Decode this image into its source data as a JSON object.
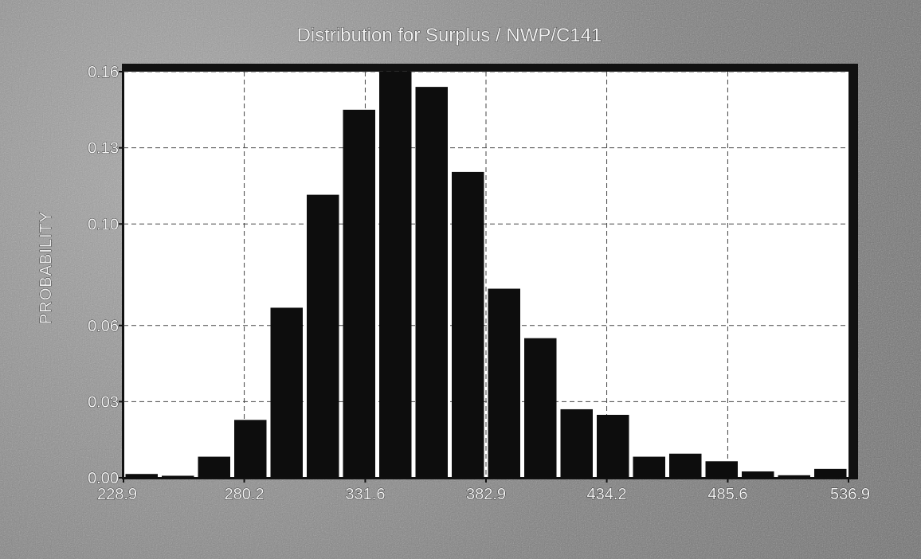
{
  "chart_data": {
    "type": "bar",
    "title": "Distribution for Surplus / NWP/C141",
    "xlabel": "",
    "ylabel": "PROBABILITY",
    "x_tick_labels": [
      "228.9",
      "280.2",
      "331.6",
      "382.9",
      "434.2",
      "485.6",
      "536.9"
    ],
    "y_tick_labels": [
      "0.00",
      "0.03",
      "0.06",
      "0.10",
      "0.13",
      "0.16"
    ],
    "x_range": [
      228.9,
      536.9
    ],
    "ylim": [
      0.0,
      0.16
    ],
    "bin_edges": [
      228.9,
      244.3,
      259.7,
      275.1,
      290.5,
      305.9,
      321.3,
      336.7,
      352.1,
      367.5,
      382.9,
      398.3,
      413.7,
      429.1,
      444.5,
      459.9,
      475.3,
      490.7,
      506.1,
      521.5,
      536.9
    ],
    "values": [
      0.0015,
      0.0008,
      0.0083,
      0.0228,
      0.067,
      0.1115,
      0.145,
      0.163,
      0.154,
      0.1205,
      0.0745,
      0.055,
      0.027,
      0.0248,
      0.0083,
      0.0095,
      0.0065,
      0.0025,
      0.001,
      0.0035
    ],
    "grid": true,
    "legend": "none",
    "bar_color": "#0d0d0d"
  }
}
